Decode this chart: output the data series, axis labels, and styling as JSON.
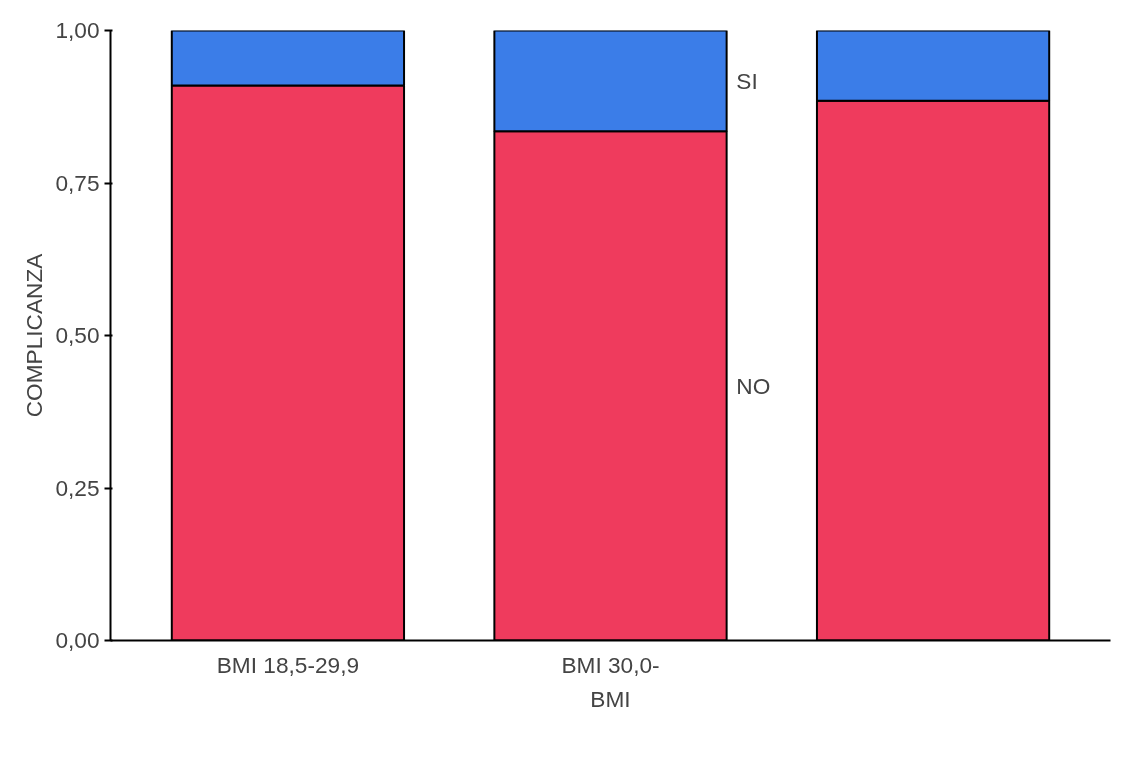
{
  "chart_data": {
    "type": "bar",
    "stacked": true,
    "xlabel": "BMI",
    "ylabel": "COMPLICANZA",
    "categories": [
      "BMI 18,5-29,9",
      "BMI 30,0-",
      null
    ],
    "series": [
      {
        "name": "NO",
        "color": "#ef3b5d",
        "values": [
          0.91,
          0.835,
          0.885
        ]
      },
      {
        "name": "SI",
        "color": "#3b7de8",
        "values": [
          0.09,
          0.165,
          0.115
        ]
      }
    ],
    "ylim": [
      0,
      1
    ],
    "yticks": [
      {
        "value": 0,
        "label": "0,00"
      },
      {
        "value": 0.25,
        "label": "0,25"
      },
      {
        "value": 0.5,
        "label": "0,50"
      },
      {
        "value": 0.75,
        "label": "0,75"
      },
      {
        "value": 1,
        "label": "1,00"
      }
    ],
    "grid": false
  }
}
